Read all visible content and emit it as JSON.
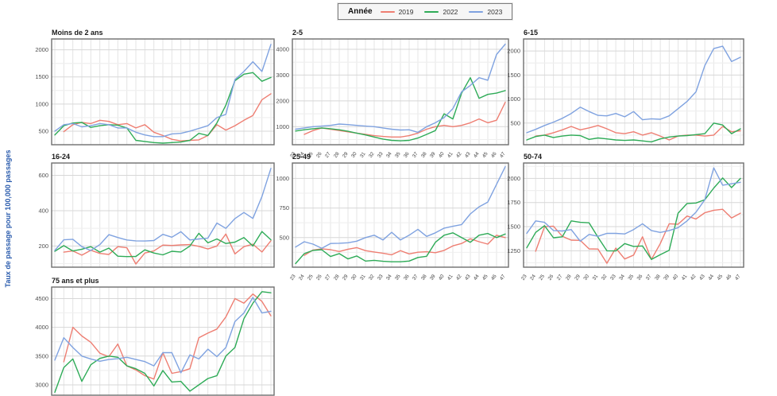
{
  "ylabel": "Taux de passage pour 100,000 passages",
  "legend": {
    "title": "Année",
    "entries": [
      {
        "label": "2019",
        "color": "#ee7e72"
      },
      {
        "label": "2022",
        "color": "#2eab57"
      },
      {
        "label": "2023",
        "color": "#7fa2e0"
      }
    ]
  },
  "colors": {
    "2019": "#ee7e72",
    "2022": "#2eab57",
    "2023": "#7fa2e0"
  },
  "weeks": [
    "23",
    "24",
    "25",
    "26",
    "27",
    "28",
    "29",
    "30",
    "31",
    "32",
    "33",
    "34",
    "35",
    "36",
    "37",
    "38",
    "39",
    "40",
    "41",
    "42",
    "43",
    "44",
    "45",
    "46",
    "47"
  ],
  "chart_data": [
    {
      "type": "line",
      "title": "Moins de 2 ans",
      "yticks": [
        500,
        1000,
        1500,
        2000
      ],
      "ylim": [
        250,
        2200
      ],
      "show_xlabels": false,
      "series": [
        {
          "name": "2019",
          "values": [
            null,
            490,
            620,
            660,
            640,
            700,
            680,
            620,
            640,
            560,
            620,
            480,
            420,
            350,
            320,
            330,
            340,
            420,
            620,
            520,
            600,
            700,
            790,
            1080,
            1190
          ]
        },
        {
          "name": "2022",
          "values": [
            430,
            600,
            650,
            660,
            570,
            600,
            620,
            610,
            560,
            330,
            310,
            290,
            280,
            290,
            300,
            330,
            460,
            420,
            650,
            980,
            1430,
            1550,
            1580,
            1420,
            1490
          ]
        },
        {
          "name": "2023",
          "values": [
            500,
            620,
            640,
            580,
            600,
            640,
            620,
            560,
            560,
            480,
            430,
            400,
            400,
            450,
            460,
            500,
            550,
            600,
            750,
            810,
            1450,
            1600,
            1780,
            1600,
            2100
          ]
        }
      ]
    },
    {
      "type": "line",
      "title": "2-5",
      "yticks": [
        1000,
        2000,
        3000,
        4000
      ],
      "ylim": [
        300,
        4400
      ],
      "show_xlabels": true,
      "series": [
        {
          "name": "2019",
          "values": [
            null,
            700,
            850,
            950,
            900,
            850,
            800,
            750,
            700,
            650,
            620,
            600,
            600,
            650,
            750,
            900,
            1000,
            1050,
            1000,
            1050,
            1150,
            1300,
            1150,
            1250,
            1950
          ]
        },
        {
          "name": "2022",
          "values": [
            830,
            880,
            920,
            950,
            920,
            880,
            820,
            750,
            680,
            600,
            520,
            470,
            450,
            470,
            560,
            700,
            850,
            1500,
            1300,
            2300,
            2900,
            2100,
            2250,
            2300,
            2400
          ]
        },
        {
          "name": "2023",
          "values": [
            900,
            950,
            1000,
            1020,
            1050,
            1100,
            1080,
            1050,
            1020,
            1000,
            950,
            900,
            870,
            880,
            780,
            1000,
            1150,
            1350,
            1700,
            2350,
            2600,
            2900,
            2800,
            3800,
            4200
          ]
        }
      ]
    },
    {
      "type": "line",
      "title": "6-15",
      "yticks": [
        500,
        1000,
        1500,
        2000
      ],
      "ylim": [
        50,
        2250
      ],
      "show_xlabels": false,
      "series": [
        {
          "name": "2019",
          "values": [
            null,
            230,
            250,
            300,
            360,
            430,
            360,
            400,
            450,
            380,
            300,
            280,
            320,
            250,
            300,
            230,
            150,
            230,
            250,
            250,
            230,
            250,
            430,
            320,
            340
          ]
        },
        {
          "name": "2022",
          "values": [
            150,
            220,
            250,
            200,
            230,
            250,
            240,
            160,
            190,
            170,
            150,
            140,
            150,
            130,
            110,
            170,
            210,
            230,
            240,
            260,
            280,
            500,
            460,
            280,
            380
          ]
        },
        {
          "name": "2023",
          "values": [
            300,
            370,
            450,
            520,
            600,
            700,
            830,
            740,
            660,
            650,
            700,
            630,
            740,
            570,
            590,
            580,
            650,
            800,
            950,
            1150,
            1700,
            2050,
            2100,
            1780,
            1870
          ]
        }
      ]
    },
    {
      "type": "line",
      "title": "16-24",
      "yticks": [
        200,
        400,
        600
      ],
      "ylim": [
        80,
        670
      ],
      "show_xlabels": false,
      "series": [
        {
          "name": "2019",
          "values": [
            null,
            165,
            172,
            148,
            176,
            158,
            152,
            196,
            190,
            98,
            160,
            172,
            205,
            203,
            206,
            208,
            198,
            183,
            200,
            268,
            155,
            196,
            210,
            166,
            230
          ]
        },
        {
          "name": "2022",
          "values": [
            170,
            202,
            172,
            182,
            196,
            165,
            188,
            142,
            140,
            141,
            178,
            160,
            150,
            170,
            166,
            200,
            272,
            218,
            240,
            214,
            222,
            248,
            200,
            282,
            235
          ]
        },
        {
          "name": "2023",
          "values": [
            175,
            235,
            238,
            196,
            174,
            208,
            264,
            248,
            234,
            229,
            228,
            231,
            266,
            250,
            281,
            234,
            240,
            245,
            330,
            300,
            355,
            390,
            356,
            480,
            640
          ]
        }
      ]
    },
    {
      "type": "line",
      "title": "25-49",
      "yticks": [
        500,
        750,
        1000
      ],
      "ylim": [
        250,
        1130
      ],
      "show_xlabels": true,
      "series": [
        {
          "name": "2019",
          "values": [
            null,
            350,
            395,
            405,
            398,
            382,
            402,
            415,
            390,
            378,
            368,
            355,
            390,
            362,
            376,
            380,
            372,
            392,
            430,
            450,
            490,
            465,
            445,
            520,
            500
          ]
        },
        {
          "name": "2022",
          "values": [
            280,
            365,
            392,
            398,
            340,
            365,
            320,
            345,
            302,
            308,
            300,
            296,
            296,
            302,
            332,
            342,
            460,
            520,
            540,
            500,
            460,
            520,
            535,
            500,
            530
          ]
        },
        {
          "name": "2023",
          "values": [
            420,
            465,
            445,
            410,
            450,
            452,
            456,
            470,
            500,
            520,
            480,
            545,
            480,
            520,
            570,
            510,
            540,
            580,
            595,
            610,
            700,
            760,
            800,
            950,
            1100
          ]
        }
      ]
    },
    {
      "type": "line",
      "title": "50-74",
      "yticks": [
        1250,
        1500,
        1750,
        2000
      ],
      "ylim": [
        1080,
        2160
      ],
      "show_xlabels": true,
      "series": [
        {
          "name": "2019",
          "values": [
            null,
            1245,
            1500,
            1505,
            1400,
            1360,
            1358,
            1270,
            1268,
            1120,
            1278,
            1165,
            1205,
            1395,
            1160,
            1325,
            1530,
            1525,
            1610,
            1580,
            1645,
            1670,
            1680,
            1590,
            1640
          ]
        },
        {
          "name": "2022",
          "values": [
            1280,
            1440,
            1510,
            1385,
            1395,
            1560,
            1545,
            1540,
            1390,
            1250,
            1248,
            1325,
            1295,
            1300,
            1160,
            1210,
            1255,
            1640,
            1740,
            1745,
            1780,
            1900,
            2005,
            1905,
            2000
          ]
        },
        {
          "name": "2023",
          "values": [
            1430,
            1560,
            1545,
            1460,
            1455,
            1470,
            1350,
            1420,
            1400,
            1430,
            1430,
            1425,
            1470,
            1530,
            1460,
            1440,
            1460,
            1490,
            1560,
            1650,
            1780,
            2110,
            1930,
            1945,
            1960
          ]
        }
      ]
    },
    {
      "type": "line",
      "title": "75 ans et plus",
      "yticks": [
        3000,
        3500,
        4000,
        4500
      ],
      "ylim": [
        2820,
        4700
      ],
      "show_xlabels": false,
      "series": [
        {
          "name": "2019",
          "values": [
            null,
            3400,
            4000,
            3850,
            3740,
            3550,
            3490,
            3710,
            3330,
            3260,
            3160,
            3100,
            3560,
            3200,
            3230,
            3280,
            3820,
            3900,
            3970,
            4180,
            4500,
            4420,
            4580,
            4450,
            4200
          ]
        },
        {
          "name": "2022",
          "values": [
            2870,
            3300,
            3450,
            3060,
            3350,
            3460,
            3500,
            3480,
            3330,
            3280,
            3200,
            2980,
            3250,
            3050,
            3060,
            2890,
            3000,
            3110,
            3160,
            3500,
            3650,
            4150,
            4420,
            4620,
            4600
          ]
        },
        {
          "name": "2023",
          "values": [
            3430,
            3820,
            3650,
            3500,
            3450,
            3410,
            3440,
            3455,
            3480,
            3440,
            3405,
            3330,
            3560,
            3560,
            3210,
            3520,
            3450,
            3620,
            3490,
            3650,
            4100,
            4250,
            4520,
            4250,
            4280
          ]
        }
      ]
    }
  ]
}
